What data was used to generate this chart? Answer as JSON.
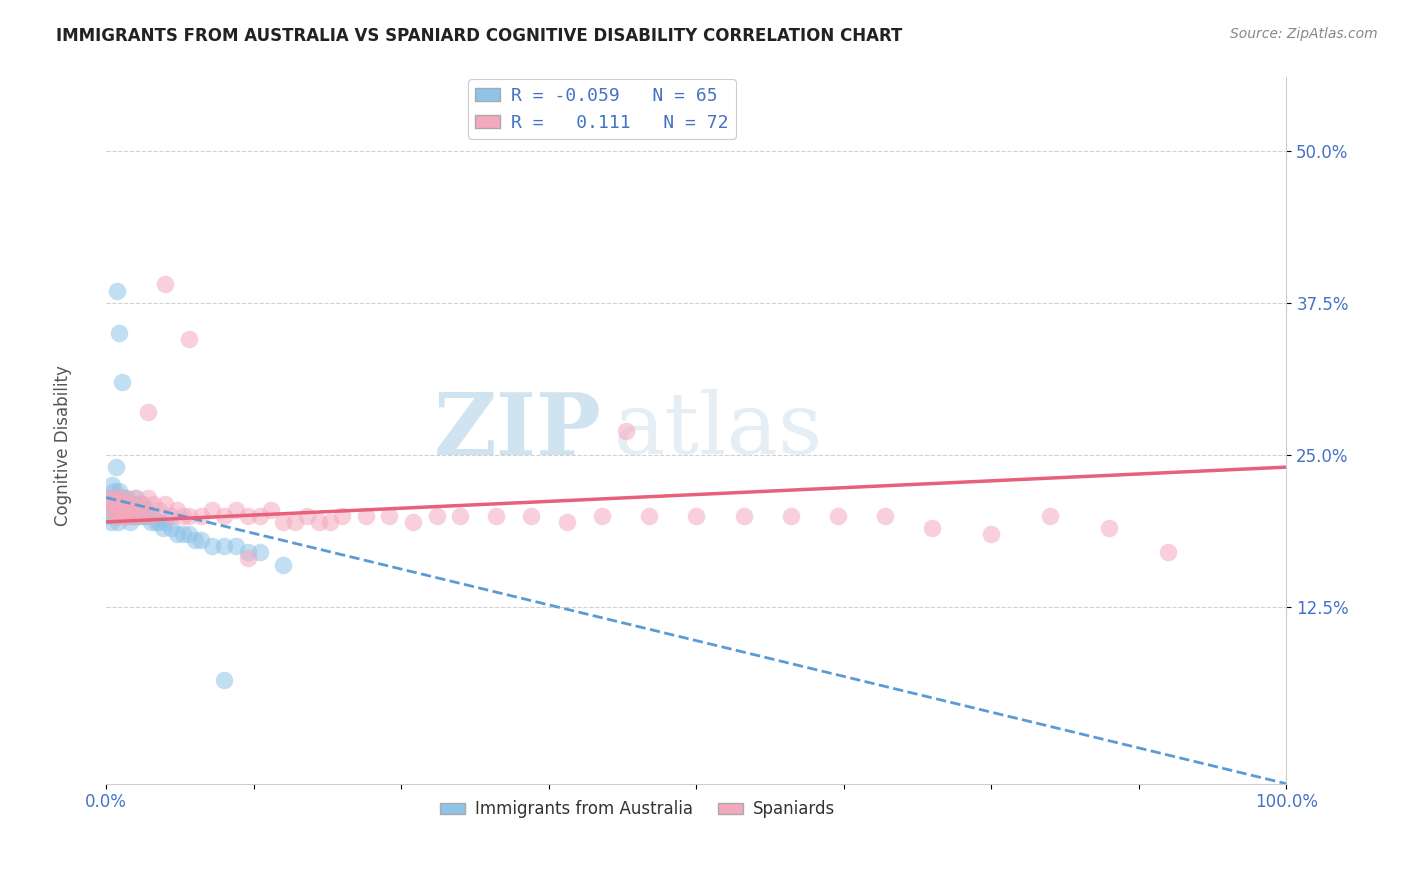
{
  "title": "IMMIGRANTS FROM AUSTRALIA VS SPANIARD COGNITIVE DISABILITY CORRELATION CHART",
  "source": "Source: ZipAtlas.com",
  "ylabel": "Cognitive Disability",
  "xlim": [
    0.0,
    1.0
  ],
  "ylim": [
    -0.02,
    0.56
  ],
  "xtick_vals": [
    0.0,
    0.125,
    0.25,
    0.375,
    0.5,
    0.625,
    0.75,
    0.875,
    1.0
  ],
  "ytick_vals": [
    0.125,
    0.25,
    0.375,
    0.5
  ],
  "ytick_labels": [
    "12.5%",
    "25.0%",
    "37.5%",
    "50.0%"
  ],
  "color_blue": "#8ec4e8",
  "color_pink": "#f4a8bc",
  "color_blue_line": "#5b9bd5",
  "color_pink_line": "#e8607a",
  "watermark_zip": "ZIP",
  "watermark_atlas": "atlas",
  "blue_r": "-0.059",
  "blue_n": "65",
  "pink_r": "0.111",
  "pink_n": "72",
  "blue_scatter_x": [
    0.002,
    0.003,
    0.004,
    0.005,
    0.005,
    0.006,
    0.007,
    0.008,
    0.008,
    0.009,
    0.01,
    0.01,
    0.01,
    0.011,
    0.012,
    0.012,
    0.013,
    0.013,
    0.014,
    0.015,
    0.015,
    0.016,
    0.017,
    0.018,
    0.018,
    0.019,
    0.02,
    0.02,
    0.021,
    0.022,
    0.023,
    0.024,
    0.025,
    0.025,
    0.026,
    0.027,
    0.028,
    0.03,
    0.03,
    0.032,
    0.034,
    0.035,
    0.038,
    0.04,
    0.042,
    0.045,
    0.048,
    0.05,
    0.055,
    0.06,
    0.065,
    0.07,
    0.075,
    0.08,
    0.09,
    0.1,
    0.11,
    0.12,
    0.13,
    0.15,
    0.009,
    0.011,
    0.013,
    0.1,
    0.008
  ],
  "blue_scatter_y": [
    0.215,
    0.2,
    0.195,
    0.21,
    0.225,
    0.205,
    0.22,
    0.215,
    0.2,
    0.21,
    0.195,
    0.205,
    0.215,
    0.22,
    0.21,
    0.2,
    0.205,
    0.215,
    0.21,
    0.2,
    0.215,
    0.205,
    0.21,
    0.215,
    0.2,
    0.205,
    0.195,
    0.21,
    0.205,
    0.2,
    0.21,
    0.205,
    0.2,
    0.215,
    0.205,
    0.2,
    0.21,
    0.2,
    0.21,
    0.2,
    0.205,
    0.2,
    0.195,
    0.2,
    0.195,
    0.195,
    0.19,
    0.195,
    0.19,
    0.185,
    0.185,
    0.185,
    0.18,
    0.18,
    0.175,
    0.175,
    0.175,
    0.17,
    0.17,
    0.16,
    0.385,
    0.35,
    0.31,
    0.065,
    0.24
  ],
  "pink_scatter_x": [
    0.003,
    0.005,
    0.006,
    0.007,
    0.008,
    0.009,
    0.01,
    0.01,
    0.011,
    0.012,
    0.013,
    0.014,
    0.015,
    0.016,
    0.017,
    0.018,
    0.019,
    0.02,
    0.021,
    0.022,
    0.024,
    0.026,
    0.028,
    0.03,
    0.032,
    0.035,
    0.038,
    0.04,
    0.045,
    0.05,
    0.055,
    0.06,
    0.065,
    0.07,
    0.08,
    0.09,
    0.1,
    0.11,
    0.12,
    0.13,
    0.14,
    0.15,
    0.16,
    0.17,
    0.18,
    0.19,
    0.2,
    0.22,
    0.24,
    0.26,
    0.28,
    0.3,
    0.33,
    0.36,
    0.39,
    0.42,
    0.46,
    0.5,
    0.54,
    0.58,
    0.62,
    0.66,
    0.7,
    0.75,
    0.8,
    0.85,
    0.9,
    0.035,
    0.05,
    0.07,
    0.12,
    0.44
  ],
  "pink_scatter_y": [
    0.215,
    0.21,
    0.205,
    0.215,
    0.2,
    0.21,
    0.205,
    0.215,
    0.2,
    0.21,
    0.205,
    0.2,
    0.215,
    0.205,
    0.2,
    0.21,
    0.205,
    0.2,
    0.21,
    0.205,
    0.215,
    0.205,
    0.2,
    0.21,
    0.205,
    0.215,
    0.2,
    0.21,
    0.205,
    0.21,
    0.2,
    0.205,
    0.2,
    0.2,
    0.2,
    0.205,
    0.2,
    0.205,
    0.2,
    0.2,
    0.205,
    0.195,
    0.195,
    0.2,
    0.195,
    0.195,
    0.2,
    0.2,
    0.2,
    0.195,
    0.2,
    0.2,
    0.2,
    0.2,
    0.195,
    0.2,
    0.2,
    0.2,
    0.2,
    0.2,
    0.2,
    0.2,
    0.19,
    0.185,
    0.2,
    0.19,
    0.17,
    0.285,
    0.39,
    0.345,
    0.165,
    0.27
  ],
  "blue_line_x0": 0.0,
  "blue_line_x1": 1.0,
  "blue_line_y0": 0.215,
  "blue_line_y1": -0.02,
  "pink_line_x0": 0.0,
  "pink_line_x1": 1.0,
  "pink_line_y0": 0.195,
  "pink_line_y1": 0.24
}
